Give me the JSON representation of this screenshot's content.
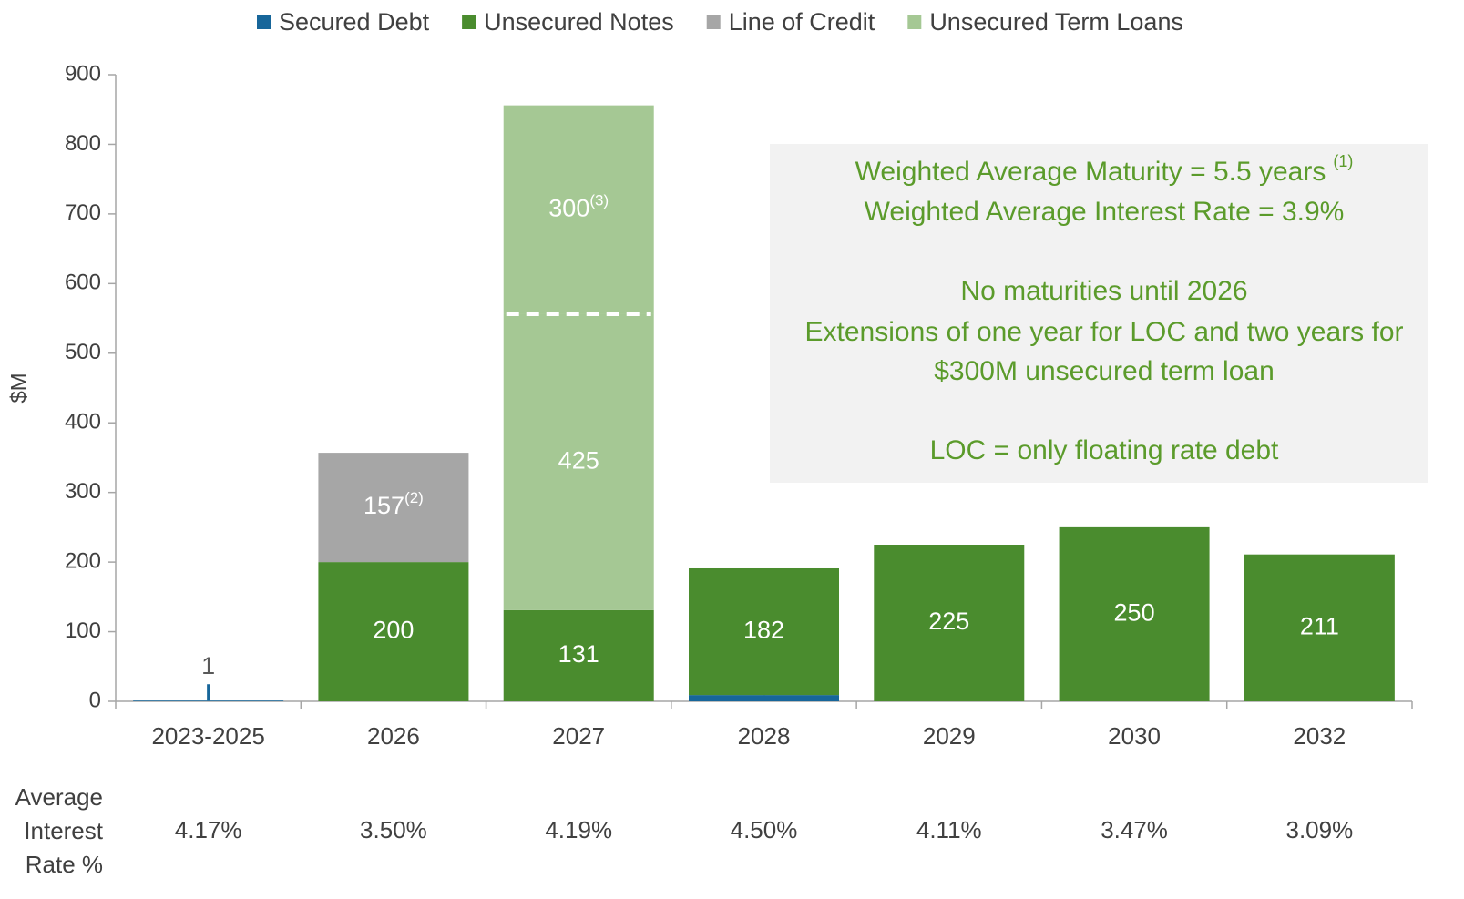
{
  "chart_data": {
    "type": "stacked_bar",
    "ylabel": "$M",
    "categories": [
      "2023-2025",
      "2026",
      "2027",
      "2028",
      "2029",
      "2030",
      "2032"
    ],
    "series": [
      {
        "name": "Secured Debt",
        "color": "#17669a",
        "values": [
          1,
          null,
          null,
          9,
          null,
          null,
          null
        ]
      },
      {
        "name": "Unsecured Notes",
        "color": "#4a8c2e",
        "values": [
          null,
          200,
          131,
          182,
          225,
          250,
          211
        ]
      },
      {
        "name": "Line of Credit",
        "color": "#a6a6a6",
        "values": [
          null,
          157,
          null,
          null,
          null,
          null,
          null
        ],
        "value_notes": [
          null,
          "(2)",
          null,
          null,
          null,
          null,
          null
        ]
      },
      {
        "name": "Unsecured Term Loans",
        "color": "#a5c894",
        "values": [
          null,
          null,
          425,
          null,
          null,
          null,
          null
        ]
      },
      {
        "color": "#a5c894",
        "values": [
          null,
          null,
          300,
          null,
          null,
          null,
          null
        ],
        "value_notes": [
          null,
          null,
          "(3)",
          null,
          null,
          null,
          null
        ],
        "boundary": "dashed"
      }
    ],
    "ylim": [
      0,
      900
    ],
    "yticks": [
      0,
      100,
      200,
      300,
      400,
      500,
      600,
      700,
      800,
      900
    ],
    "grid": false,
    "legend": "top",
    "annotation": {
      "lines": [
        {
          "text": "Weighted Average Maturity = 5.5 years",
          "note": "(1)"
        },
        {
          "text": "Weighted Average Interest Rate = 3.9%"
        },
        null,
        {
          "text": "No maturities until 2026"
        },
        {
          "text": "Extensions of one year for LOC and two years for"
        },
        {
          "text": "$300M unsecured term loan"
        },
        null,
        {
          "text": "LOC = only floating rate debt"
        }
      ]
    },
    "rate_row": {
      "label": [
        "Average",
        "Interest",
        "Rate %"
      ],
      "values": [
        "4.17%",
        "3.50%",
        "4.19%",
        "4.50%",
        "4.11%",
        "3.47%",
        "3.09%"
      ]
    }
  }
}
